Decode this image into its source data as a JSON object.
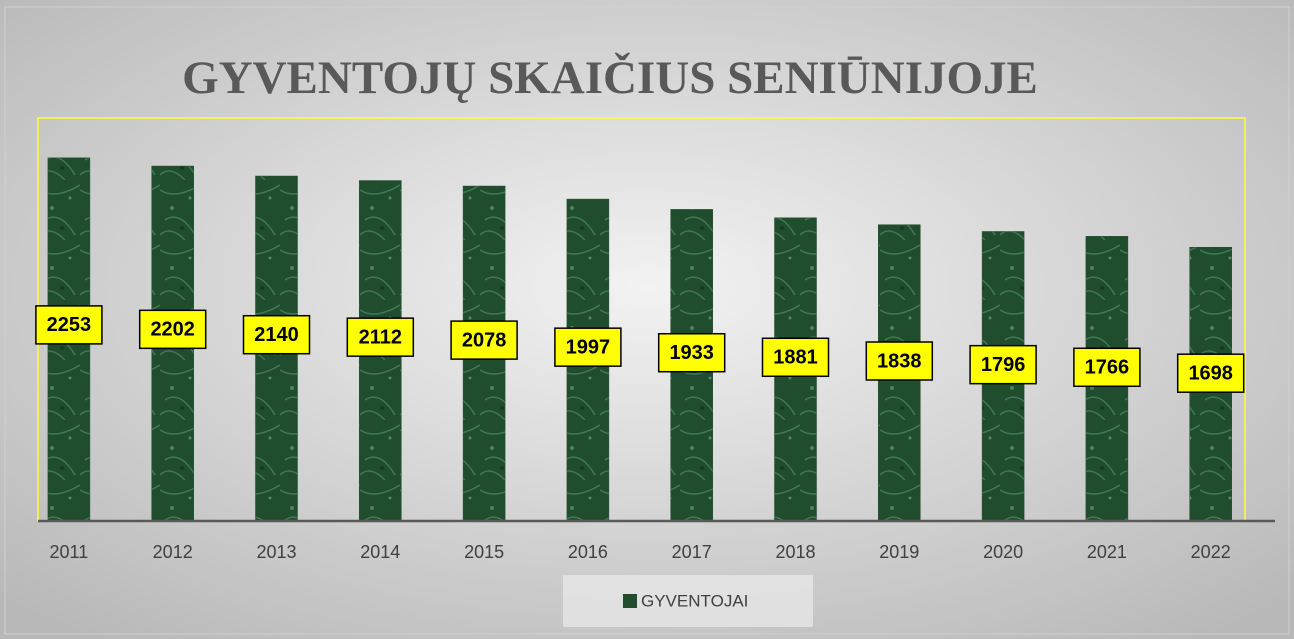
{
  "chart_data": {
    "type": "bar",
    "title": "GYVENTOJŲ SKAIČIUS SENIŪNIJOJE",
    "categories": [
      "2011",
      "2012",
      "2013",
      "2014",
      "2015",
      "2016",
      "2017",
      "2018",
      "2019",
      "2020",
      "2021",
      "2022"
    ],
    "series": [
      {
        "name": "GYVENTOJAI",
        "color": "#1f4d2e",
        "values": [
          2253,
          2202,
          2140,
          2112,
          2078,
          1997,
          1933,
          1881,
          1838,
          1796,
          1766,
          1698
        ]
      }
    ],
    "ylim": [
      0,
      2500
    ],
    "legend": "bottom"
  }
}
